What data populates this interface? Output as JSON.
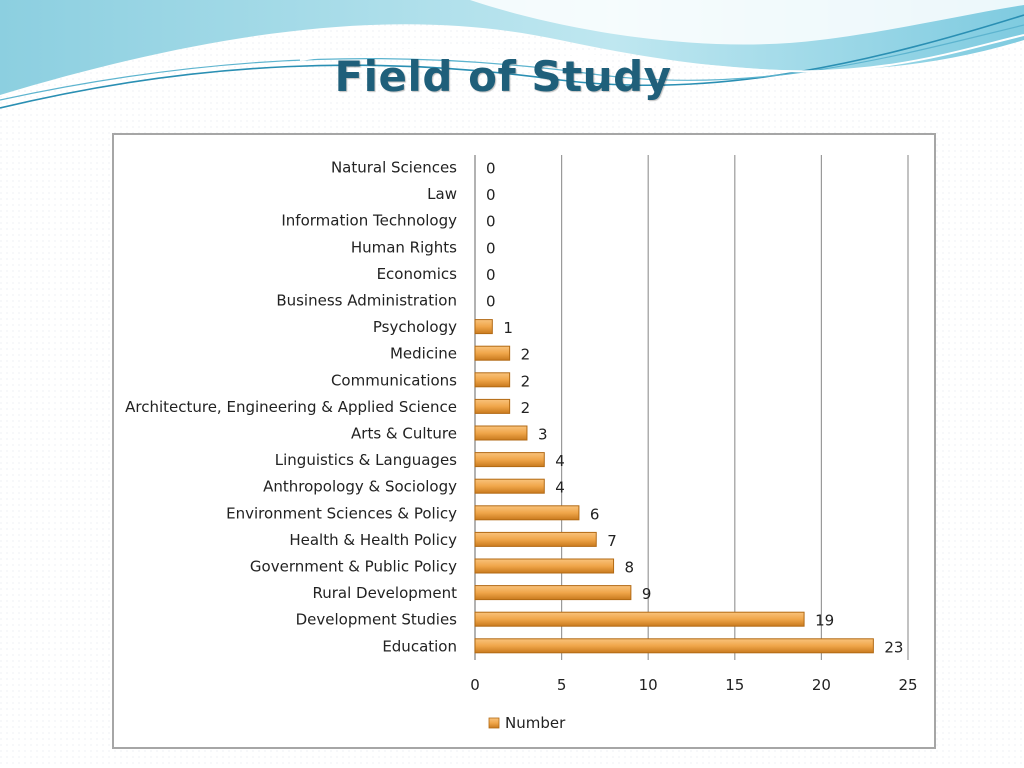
{
  "slide": {
    "title": "Field of Study"
  },
  "colors": {
    "bar_fill": "#f0a64a",
    "bar_edge": "#b26a14",
    "gridline": "#9a9a9a",
    "title": "#1f5f7a",
    "wave_dark": "#2a8fb3",
    "wave_light": "#9ad8e6"
  },
  "chart_data": {
    "type": "bar",
    "orientation": "horizontal",
    "title": "",
    "xlabel": "",
    "ylabel": "",
    "xlim": [
      0,
      25
    ],
    "xticks": [
      0,
      5,
      10,
      15,
      20,
      25
    ],
    "grid": true,
    "legend": {
      "position": "bottom",
      "entries": [
        "Number"
      ]
    },
    "categories": [
      "Natural Sciences",
      "Law",
      "Information Technology",
      "Human Rights",
      "Economics",
      "Business Administration",
      "Psychology",
      "Medicine",
      "Communications",
      "Architecture, Engineering & Applied Science",
      "Arts & Culture",
      "Linguistics & Languages",
      "Anthropology & Sociology",
      "Environment Sciences & Policy",
      "Health & Health Policy",
      "Government & Public Policy",
      "Rural Development",
      "Development Studies",
      "Education"
    ],
    "series": [
      {
        "name": "Number",
        "values": [
          0,
          0,
          0,
          0,
          0,
          0,
          1,
          2,
          2,
          2,
          3,
          4,
          4,
          6,
          7,
          8,
          9,
          19,
          23
        ]
      }
    ]
  }
}
